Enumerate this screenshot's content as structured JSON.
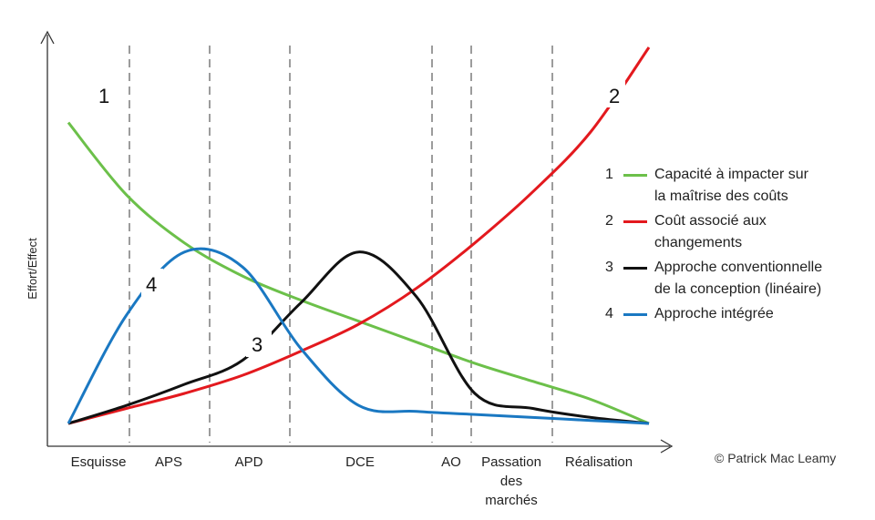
{
  "chart_data": {
    "type": "line",
    "ylabel": "Effort/Effect",
    "phases": [
      "Esquisse",
      "APS",
      "APD",
      "DCE",
      "AO",
      "Passation des marchés",
      "Réalisation"
    ],
    "phase_label_lines": [
      [
        "Esquisse"
      ],
      [
        "APS"
      ],
      [
        "APD"
      ],
      [
        "DCE"
      ],
      [
        "AO"
      ],
      [
        "Passation",
        "des",
        "marchés"
      ],
      [
        "Réalisation"
      ]
    ],
    "x": [
      0,
      10,
      20,
      30,
      40,
      50,
      60,
      70,
      80,
      90,
      100
    ],
    "series": [
      {
        "id": "1",
        "name": "Capacité à impacter sur la maîtrise des coûts",
        "label_lines": [
          "Capacité à impacter sur",
          "la maîtrise des coûts"
        ],
        "color": "#6cc04a",
        "values": [
          100,
          76,
          60,
          49,
          41,
          34,
          27,
          20,
          14,
          8,
          0
        ]
      },
      {
        "id": "2",
        "name": "Coût associé aux changements",
        "label_lines": [
          "Coût associé aux",
          "changements"
        ],
        "color": "#e3191e",
        "values": [
          0,
          5,
          10,
          16,
          24,
          33,
          45,
          60,
          77,
          97,
          125
        ]
      },
      {
        "id": "3",
        "name": "Approche conventionnelle de la conception (linéaire)",
        "label_lines": [
          "Approche conventionnelle",
          "de la conception (linéaire)"
        ],
        "color": "#111111",
        "values": [
          0,
          6,
          13,
          21,
          40,
          57,
          42,
          10,
          5,
          2,
          0
        ]
      },
      {
        "id": "4",
        "name": "Approche intégrée",
        "label_lines": [
          "Approche intégrée"
        ],
        "color": "#1a78c2",
        "values": [
          0,
          36,
          57,
          52,
          25,
          6,
          4,
          3,
          2,
          1,
          0
        ]
      }
    ],
    "ylim": [
      0,
      125
    ],
    "xlim": [
      0,
      100
    ]
  },
  "copyright": "© Patrick Mac Leamy"
}
